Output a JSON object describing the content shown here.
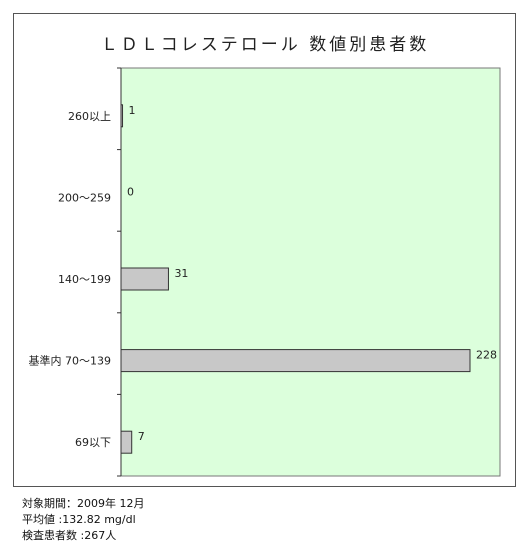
{
  "chart_data": {
    "type": "bar",
    "orientation": "horizontal",
    "title": "ＬＤＬコレステロール 数値別患者数",
    "categories": [
      "260以上",
      "200～259",
      "140～199",
      "基準内 70～139",
      "69以下"
    ],
    "values": [
      1,
      0,
      31,
      228,
      7
    ],
    "xlim": [
      0,
      240
    ],
    "grid": false,
    "plot_background": "#dcffdc",
    "bar_color": "#c8c8c8"
  },
  "footer": {
    "period": "対象期間：2009年 12月",
    "average": "平均値 :132.82 mg/dl",
    "patients": "検査患者数 :267人"
  }
}
